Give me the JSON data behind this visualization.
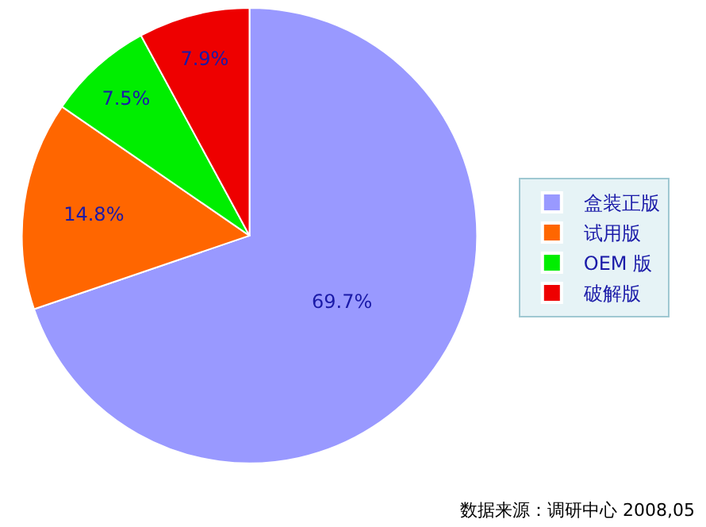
{
  "chart_data": {
    "type": "pie",
    "categories": [
      "盒装正版",
      "试用版",
      "OEM 版",
      "破解版"
    ],
    "values": [
      69.7,
      14.8,
      7.5,
      7.9
    ],
    "value_labels": [
      "69.7%",
      "14.8%",
      "7.5%",
      "7.9%"
    ],
    "colors": [
      "#9999ff",
      "#ff6600",
      "#00ee00",
      "#ee0000"
    ],
    "legend": "right",
    "annotations": [
      "数据来源：调研中心 2008,05"
    ]
  }
}
